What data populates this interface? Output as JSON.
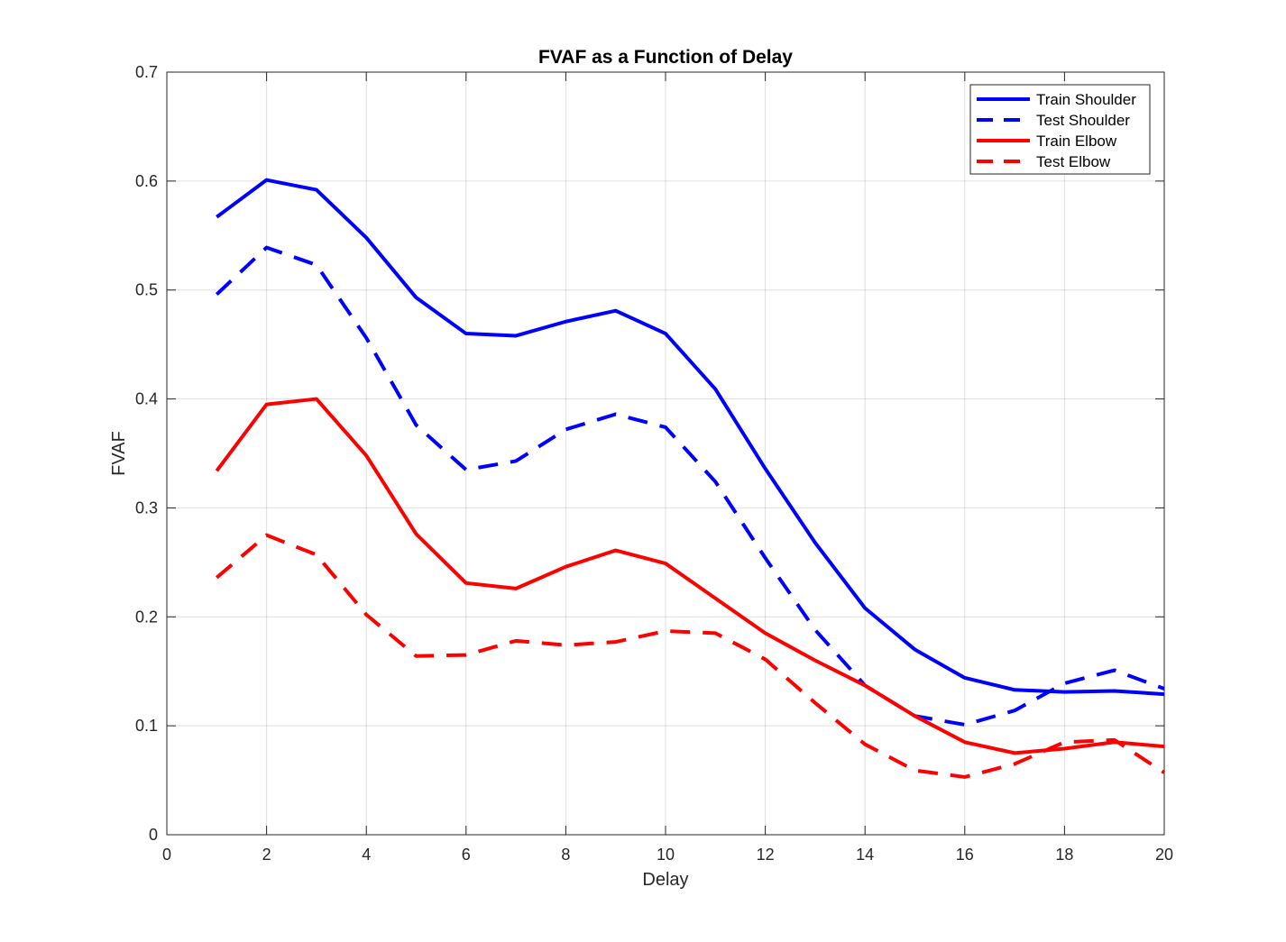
{
  "chart_data": {
    "type": "line",
    "title": "FVAF as a Function of Delay",
    "xlabel": "Delay",
    "ylabel": "FVAF",
    "xlim": [
      0,
      20
    ],
    "ylim": [
      0,
      0.7
    ],
    "xticks": [
      "0",
      "2",
      "4",
      "6",
      "8",
      "10",
      "12",
      "14",
      "16",
      "18",
      "20"
    ],
    "yticks": [
      "0",
      "0.1",
      "0.2",
      "0.3",
      "0.4",
      "0.5",
      "0.6",
      "0.7"
    ],
    "grid": true,
    "legend_position": "top-right",
    "x": [
      1,
      2,
      3,
      4,
      5,
      6,
      7,
      8,
      9,
      10,
      11,
      12,
      13,
      14,
      15,
      16,
      17,
      18,
      19,
      20
    ],
    "series": [
      {
        "name": "Train Shoulder",
        "color": "#0000ff",
        "style": "solid",
        "values": [
          0.567,
          0.601,
          0.592,
          0.548,
          0.493,
          0.46,
          0.458,
          0.471,
          0.481,
          0.46,
          0.409,
          0.336,
          0.268,
          0.208,
          0.17,
          0.144,
          0.133,
          0.131,
          0.132,
          0.129
        ]
      },
      {
        "name": "Test Shoulder",
        "color": "#0000ff",
        "style": "dashed",
        "values": [
          0.496,
          0.539,
          0.523,
          0.456,
          0.376,
          0.335,
          0.343,
          0.372,
          0.386,
          0.374,
          0.324,
          0.254,
          0.188,
          0.137,
          0.109,
          0.101,
          0.114,
          0.139,
          0.151,
          0.134
        ]
      },
      {
        "name": "Train Elbow",
        "color": "#ff0000",
        "style": "solid",
        "values": [
          0.334,
          0.395,
          0.4,
          0.348,
          0.276,
          0.231,
          0.226,
          0.246,
          0.261,
          0.249,
          0.217,
          0.185,
          0.16,
          0.137,
          0.109,
          0.085,
          0.075,
          0.079,
          0.085,
          0.081
        ]
      },
      {
        "name": "Test Elbow",
        "color": "#ff0000",
        "style": "dashed",
        "values": [
          0.236,
          0.275,
          0.257,
          0.202,
          0.164,
          0.165,
          0.178,
          0.174,
          0.177,
          0.187,
          0.185,
          0.161,
          0.121,
          0.083,
          0.059,
          0.053,
          0.065,
          0.085,
          0.087,
          0.057
        ]
      }
    ]
  }
}
